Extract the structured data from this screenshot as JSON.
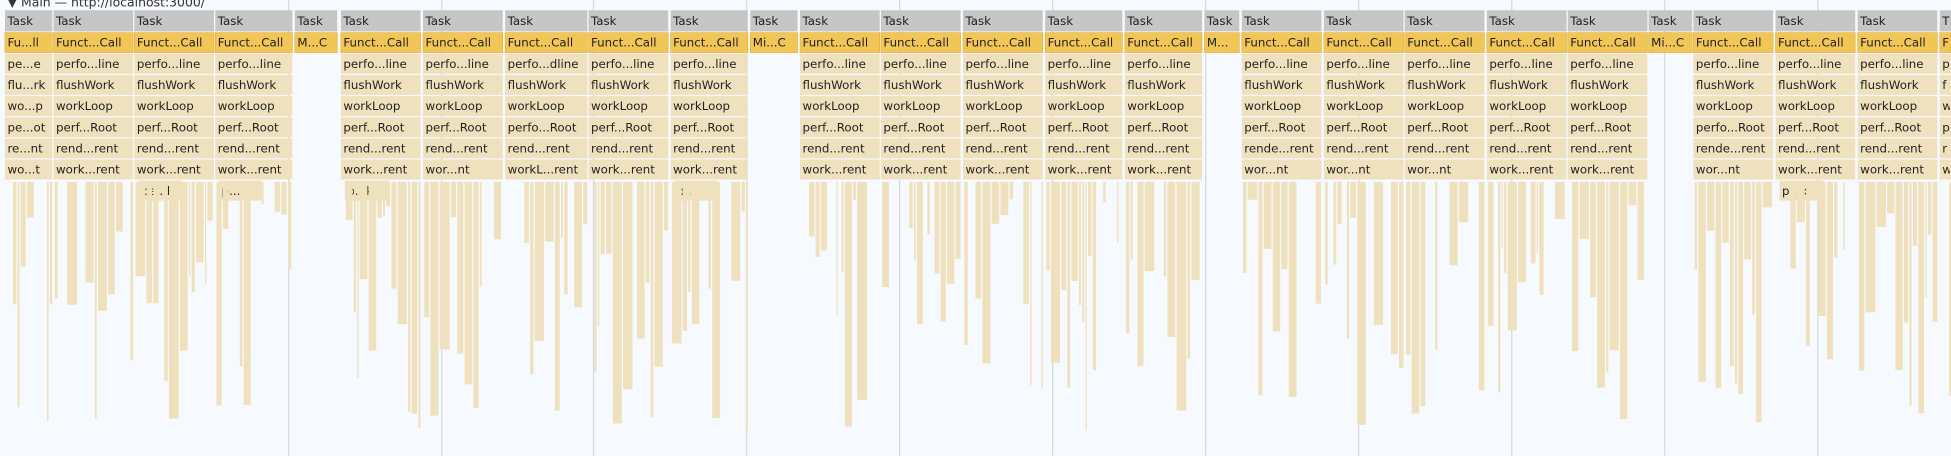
{
  "header": "▼ Main — http://localhost:3000/",
  "tasks": [
    {
      "rows": [
        "Task",
        "Fu...ll",
        "pe...e",
        "flu...rk",
        "wo...p",
        "pe...ot",
        "re...nt",
        "wo...t"
      ]
    },
    {
      "rows": [
        "Task",
        "Funct...Call",
        "perfo...line",
        "flushWork",
        "workLoop",
        "perf...Root",
        "rend...rent",
        "work...rent"
      ]
    },
    {
      "rows": [
        "Task",
        "Funct...Call",
        "perfo...line",
        "flushWork",
        "workLoop",
        "perf...Root",
        "rend...rent",
        "work...rent",
        "pe...k"
      ]
    },
    {
      "rows": [
        "Task",
        "Funct...Call",
        "perfo...line",
        "flushWork",
        "workLoop",
        "perf...Root",
        "rend...rent",
        "work...rent",
        "p..."
      ]
    },
    {
      "rows": [
        "Task",
        "M...C"
      ]
    },
    {
      "rows": [
        "Task",
        "Funct...Call",
        "perfo...line",
        "flushWork",
        "workLoop",
        "perf...Root",
        "rend...rent",
        "work...rent",
        "p...k"
      ]
    },
    {
      "rows": [
        "Task",
        "Funct...Call",
        "perfo...line",
        "flushWork",
        "workLoop",
        "perf...Root",
        "rend...rent",
        "wor...nt"
      ]
    },
    {
      "rows": [
        "Task",
        "Funct...Call",
        "perfo...dline",
        "flushWork",
        "workLoop",
        "perfo...Root",
        "rend...rent",
        "workL...rent"
      ]
    },
    {
      "rows": [
        "Task",
        "Funct...Call",
        "perfo...line",
        "flushWork",
        "workLoop",
        "perf...Root",
        "rend...rent",
        "work...rent"
      ]
    },
    {
      "rows": [
        "Task",
        "Funct...Call",
        "perfo...line",
        "flushWork",
        "workLoop",
        "perf...Root",
        "rend...rent",
        "work...rent",
        "p..."
      ]
    },
    {
      "rows": [
        "Task",
        "Mi...C"
      ]
    },
    {
      "rows": [
        "Task",
        "Funct...Call",
        "perfo...line",
        "flushWork",
        "workLoop",
        "perf...Root",
        "rend...rent",
        "work...rent"
      ]
    },
    {
      "rows": [
        "Task",
        "Funct...Call",
        "perfo...line",
        "flushWork",
        "workLoop",
        "perf...Root",
        "rend...rent",
        "work...rent"
      ]
    },
    {
      "rows": [
        "Task",
        "Funct...Call",
        "perfo...line",
        "flushWork",
        "workLoop",
        "perf...Root",
        "rend...rent",
        "work...rent"
      ]
    },
    {
      "rows": [
        "Task",
        "Funct...Call",
        "perfo...line",
        "flushWork",
        "workLoop",
        "perf...Root",
        "rend...rent",
        "work...rent"
      ]
    },
    {
      "rows": [
        "Task",
        "Funct...Call",
        "perfo...line",
        "flushWork",
        "workLoop",
        "perf...Root",
        "rend...rent",
        "work...rent"
      ]
    },
    {
      "rows": [
        "Task",
        "M..."
      ]
    },
    {
      "rows": [
        "Task",
        "Funct...Call",
        "perfo...line",
        "flushWork",
        "workLoop",
        "perf...Root",
        "rende...rent",
        "wor...nt"
      ]
    },
    {
      "rows": [
        "Task",
        "Funct...Call",
        "perfo...line",
        "flushWork",
        "workLoop",
        "perf...Root",
        "rend...rent",
        "wor...nt"
      ]
    },
    {
      "rows": [
        "Task",
        "Funct...Call",
        "perfo...line",
        "flushWork",
        "workLoop",
        "perf...Root",
        "rend...rent",
        "wor...nt"
      ]
    },
    {
      "rows": [
        "Task",
        "Funct...Call",
        "perfo...line",
        "flushWork",
        "workLoop",
        "perf...Root",
        "rend...rent",
        "work...rent"
      ]
    },
    {
      "rows": [
        "Task",
        "Funct...Call",
        "perfo...line",
        "flushWork",
        "workLoop",
        "perf...Root",
        "rend...rent",
        "work...rent"
      ]
    },
    {
      "rows": [
        "Task",
        "Mi...C"
      ]
    },
    {
      "rows": [
        "Task",
        "Funct...Call",
        "perfo...line",
        "flushWork",
        "workLoop",
        "perfo...Root",
        "rende...rent",
        "wor...nt"
      ]
    },
    {
      "rows": [
        "Task",
        "Funct...Call",
        "perfo...line",
        "flushWork",
        "workLoop",
        "perf...Root",
        "rend...rent",
        "work...rent",
        "p...k"
      ]
    },
    {
      "rows": [
        "Task",
        "Funct...Call",
        "perfo...line",
        "flushWork",
        "workLoop",
        "perf...Root",
        "rend...rent",
        "work...rent"
      ]
    },
    {
      "rows": [
        "T",
        "F",
        "p",
        "f",
        "w",
        "p",
        "r",
        "w"
      ]
    }
  ]
}
